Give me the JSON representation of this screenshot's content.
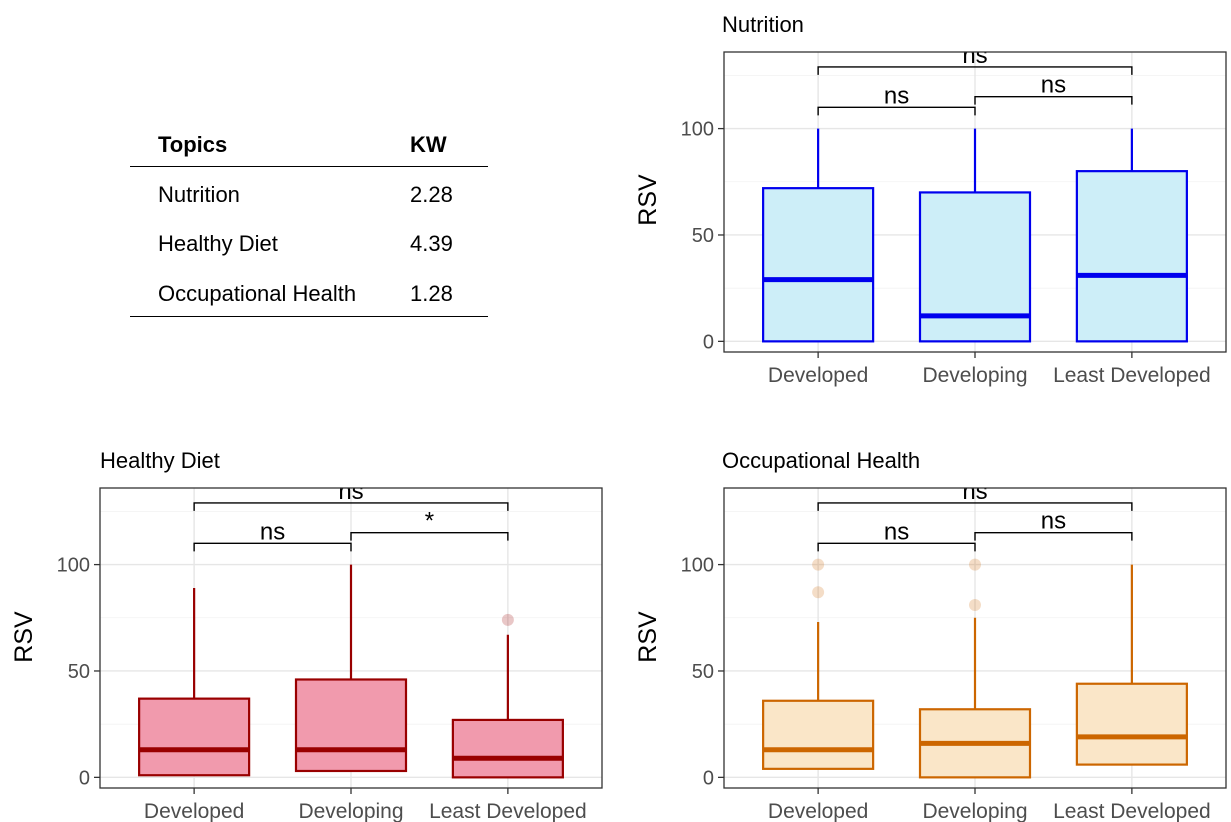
{
  "table": {
    "headers": [
      "Topics",
      "KW"
    ],
    "rows": [
      {
        "topic": "Nutrition",
        "kw": "2.28"
      },
      {
        "topic": "Healthy Diet",
        "kw": "4.39"
      },
      {
        "topic": "Occupational Health",
        "kw": "1.28"
      }
    ]
  },
  "chart_data": [
    {
      "type": "box",
      "title": "Nutrition",
      "xlabel": "",
      "ylabel": "RSV",
      "categories": [
        "Developed",
        "Developing",
        "Least Developed"
      ],
      "ylim": [
        -5,
        136
      ],
      "yticks": [
        0,
        50,
        100
      ],
      "grid": true,
      "colors": {
        "stroke": "#0000ee",
        "fill": "#cdeef8"
      },
      "boxes": [
        {
          "category": "Developed",
          "min": 0,
          "q1": 0,
          "median": 29,
          "q3": 72,
          "max": 100,
          "outliers": []
        },
        {
          "category": "Developing",
          "min": 0,
          "q1": 0,
          "median": 12,
          "q3": 70,
          "max": 100,
          "outliers": []
        },
        {
          "category": "Least Developed",
          "min": 0,
          "q1": 0,
          "median": 31,
          "q3": 80,
          "max": 100,
          "outliers": []
        }
      ],
      "comparisons": [
        {
          "from": "Developed",
          "to": "Developing",
          "y": 110,
          "label": "ns"
        },
        {
          "from": "Developing",
          "to": "Least Developed",
          "y": 115,
          "label": "ns"
        },
        {
          "from": "Developed",
          "to": "Least Developed",
          "y": 129,
          "label": "ns"
        }
      ]
    },
    {
      "type": "box",
      "title": "Healthy Diet",
      "xlabel": "",
      "ylabel": "RSV",
      "categories": [
        "Developed",
        "Developing",
        "Least Developed"
      ],
      "ylim": [
        -5,
        136
      ],
      "yticks": [
        0,
        50,
        100
      ],
      "grid": true,
      "colors": {
        "stroke": "#990000",
        "fill": "#f19aad"
      },
      "boxes": [
        {
          "category": "Developed",
          "min": 1,
          "q1": 1,
          "median": 13,
          "q3": 37,
          "max": 89,
          "outliers": []
        },
        {
          "category": "Developing",
          "min": 3,
          "q1": 3,
          "median": 13,
          "q3": 46,
          "max": 100,
          "outliers": []
        },
        {
          "category": "Least Developed",
          "min": 0,
          "q1": 0,
          "median": 9,
          "q3": 27,
          "max": 67,
          "outliers": [
            74
          ]
        }
      ],
      "comparisons": [
        {
          "from": "Developed",
          "to": "Developing",
          "y": 110,
          "label": "ns"
        },
        {
          "from": "Developing",
          "to": "Least Developed",
          "y": 115,
          "label": "*"
        },
        {
          "from": "Developed",
          "to": "Least Developed",
          "y": 129,
          "label": "ns"
        }
      ]
    },
    {
      "type": "box",
      "title": "Occupational Health",
      "xlabel": "",
      "ylabel": "RSV",
      "categories": [
        "Developed",
        "Developing",
        "Least Developed"
      ],
      "ylim": [
        -5,
        136
      ],
      "yticks": [
        0,
        50,
        100
      ],
      "grid": true,
      "colors": {
        "stroke": "#cc6600",
        "fill": "#fae6c8"
      },
      "boxes": [
        {
          "category": "Developed",
          "min": 4,
          "q1": 4,
          "median": 13,
          "q3": 36,
          "max": 73,
          "outliers": [
            87,
            100
          ]
        },
        {
          "category": "Developing",
          "min": 0,
          "q1": 0,
          "median": 16,
          "q3": 32,
          "max": 75,
          "outliers": [
            81,
            100
          ]
        },
        {
          "category": "Least Developed",
          "min": 6,
          "q1": 6,
          "median": 19,
          "q3": 44,
          "max": 100,
          "outliers": []
        }
      ],
      "comparisons": [
        {
          "from": "Developed",
          "to": "Developing",
          "y": 110,
          "label": "ns"
        },
        {
          "from": "Developing",
          "to": "Least Developed",
          "y": 115,
          "label": "ns"
        },
        {
          "from": "Developed",
          "to": "Least Developed",
          "y": 129,
          "label": "ns"
        }
      ]
    }
  ]
}
